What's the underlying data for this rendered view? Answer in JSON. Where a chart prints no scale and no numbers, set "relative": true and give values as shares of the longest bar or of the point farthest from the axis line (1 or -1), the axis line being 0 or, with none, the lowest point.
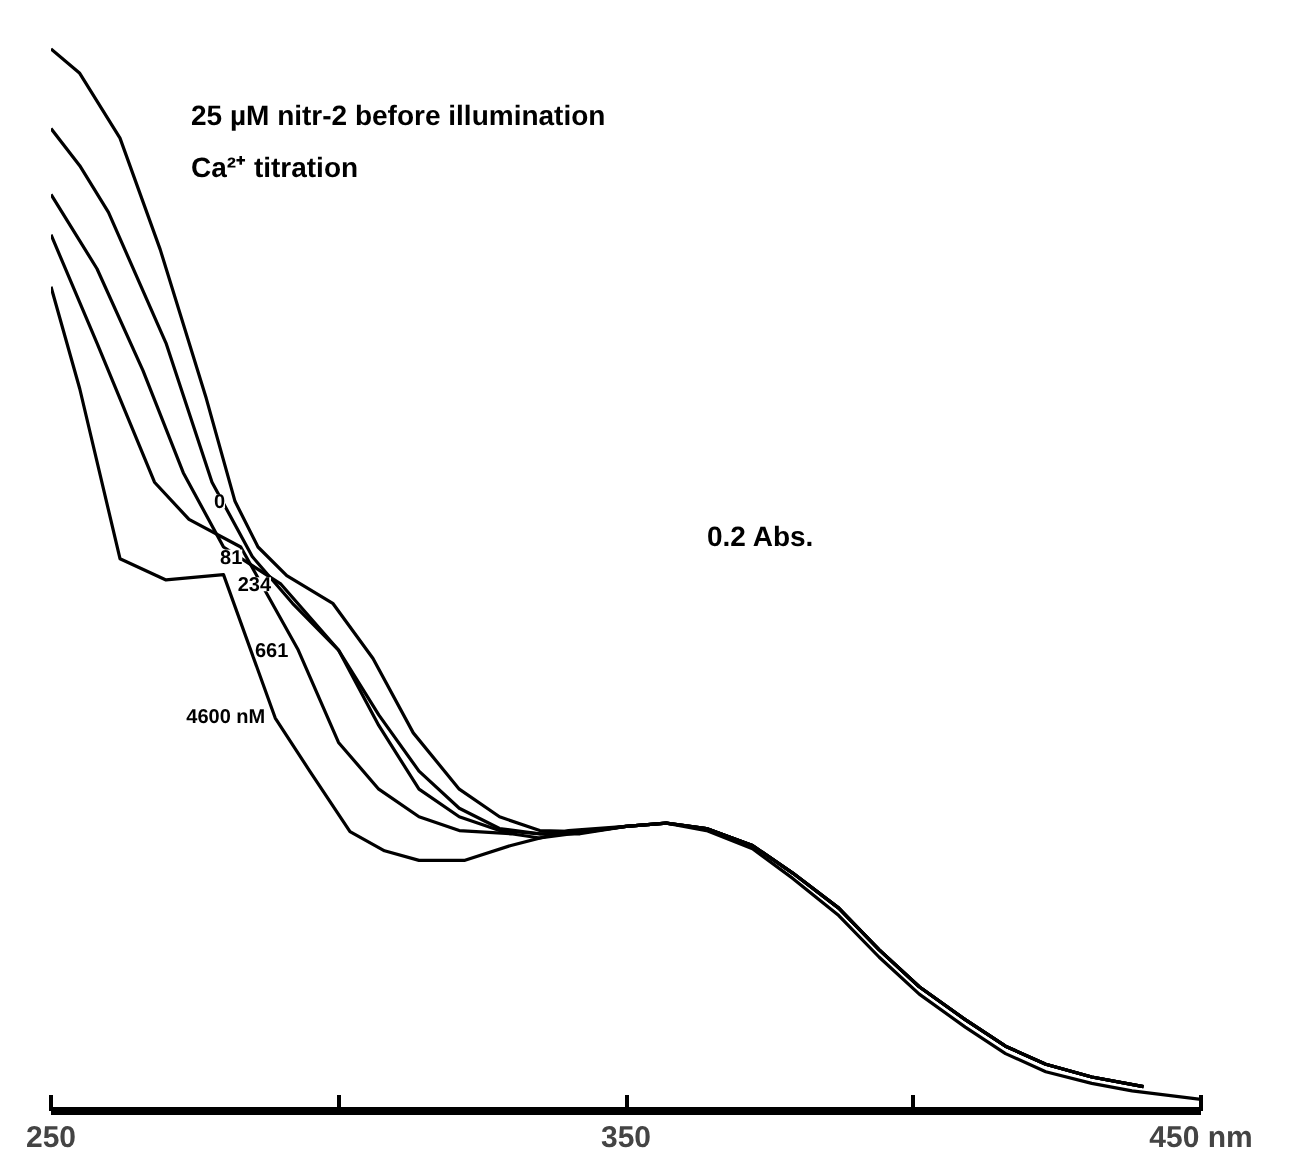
{
  "chart_data": {
    "type": "line",
    "relative": true,
    "grid": false,
    "marker": "none",
    "line_style": "solid",
    "annotations": [
      "25 µM  nitr-2 before illumination",
      "Ca²⁺ titration",
      "0.2 Abs."
    ],
    "xlim": [
      250,
      450
    ],
    "xticks": [
      250,
      {
        "value": 300,
        "label": null
      },
      350,
      {
        "value": 400,
        "label": null
      },
      {
        "value": 450,
        "label": "450 nm"
      }
    ],
    "series": [
      {
        "name": "0",
        "color": "#000000",
        "x": [
          250,
          255,
          262,
          269,
          277,
          282,
          286,
          291,
          299,
          306,
          313,
          321,
          328,
          335,
          342,
          350,
          357,
          364,
          372,
          379,
          387,
          394,
          401,
          409,
          416,
          423,
          431,
          438,
          450
        ],
        "values": [
          1.0,
          0.977,
          0.916,
          0.811,
          0.671,
          0.574,
          0.531,
          0.504,
          0.478,
          0.426,
          0.356,
          0.303,
          0.277,
          0.264,
          0.263,
          0.268,
          0.271,
          0.264,
          0.247,
          0.219,
          0.184,
          0.145,
          0.11,
          0.079,
          0.054,
          0.037,
          0.026,
          0.019,
          0.011
        ]
      },
      {
        "name": "81",
        "color": "#000000",
        "x": [
          250,
          255,
          260,
          270,
          278,
          285,
          292,
          300,
          307,
          314,
          321,
          328,
          335,
          342,
          350,
          357,
          364,
          372,
          379,
          387,
          394,
          401,
          409,
          416,
          423,
          431,
          440
        ],
        "values": [
          0.925,
          0.89,
          0.846,
          0.723,
          0.592,
          0.522,
          0.478,
          0.434,
          0.373,
          0.32,
          0.285,
          0.266,
          0.261,
          0.261,
          0.268,
          0.271,
          0.266,
          0.25,
          0.224,
          0.191,
          0.152,
          0.117,
          0.086,
          0.061,
          0.044,
          0.032,
          0.023
        ]
      },
      {
        "name": "234",
        "color": "#000000",
        "x": [
          250,
          258,
          266,
          273,
          280,
          290,
          300,
          307,
          314,
          321,
          328,
          335,
          342,
          350,
          357,
          364,
          372,
          379,
          387,
          394,
          401,
          409,
          416,
          423,
          431,
          440
        ],
        "values": [
          0.863,
          0.793,
          0.697,
          0.601,
          0.531,
          0.496,
          0.434,
          0.363,
          0.303,
          0.277,
          0.264,
          0.261,
          0.262,
          0.268,
          0.271,
          0.266,
          0.25,
          0.224,
          0.191,
          0.152,
          0.117,
          0.086,
          0.061,
          0.044,
          0.032,
          0.023
        ]
      },
      {
        "name": "661",
        "color": "#000000",
        "x": [
          250,
          258,
          268,
          274,
          283,
          293,
          300,
          307,
          314,
          321,
          330,
          335,
          342,
          350,
          357,
          364,
          372,
          379,
          387,
          394,
          401,
          409,
          416,
          423,
          431,
          440
        ],
        "values": [
          0.825,
          0.723,
          0.592,
          0.557,
          0.531,
          0.434,
          0.347,
          0.303,
          0.277,
          0.264,
          0.261,
          0.257,
          0.262,
          0.268,
          0.271,
          0.266,
          0.25,
          0.224,
          0.191,
          0.152,
          0.117,
          0.086,
          0.061,
          0.044,
          0.032,
          0.023
        ]
      },
      {
        "name": "4600 nM",
        "color": "#000000",
        "x": [
          250,
          255,
          262,
          270,
          280,
          289,
          295,
          302,
          308,
          314,
          322,
          330,
          340,
          350,
          357,
          364,
          372,
          379,
          387,
          394,
          401,
          409,
          416,
          423,
          431,
          440
        ],
        "values": [
          0.776,
          0.68,
          0.52,
          0.5,
          0.505,
          0.37,
          0.32,
          0.263,
          0.245,
          0.236,
          0.236,
          0.25,
          0.264,
          0.268,
          0.271,
          0.266,
          0.25,
          0.224,
          0.191,
          0.152,
          0.117,
          0.086,
          0.061,
          0.044,
          0.032,
          0.023
        ]
      }
    ]
  }
}
